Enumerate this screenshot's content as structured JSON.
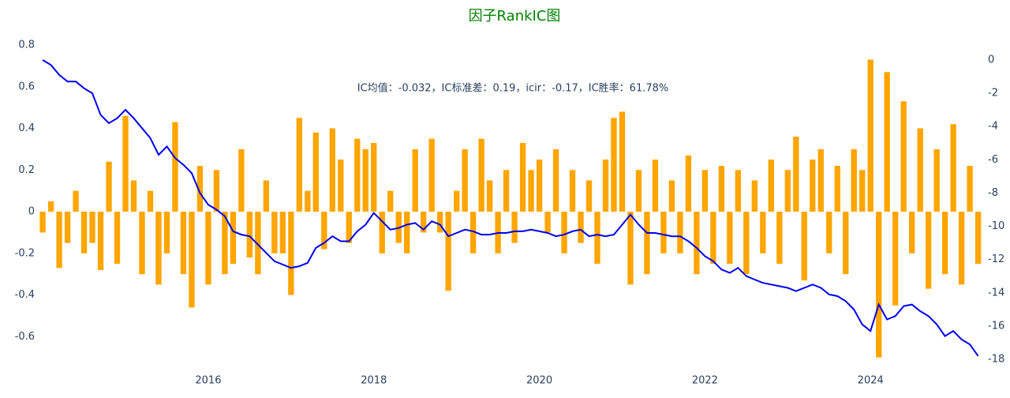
{
  "chart_data": {
    "type": "bar",
    "title": "因子RankIC图",
    "annotation": "IC均值：-0.032，IC标准差：0.19，icir：-0.17，IC胜率：61.78%",
    "x": [
      2014,
      2014.1,
      2014.2,
      2014.3,
      2014.4,
      2014.5,
      2014.6,
      2014.7,
      2014.8,
      2014.9,
      2015,
      2015.1,
      2015.2,
      2015.3,
      2015.4,
      2015.5,
      2015.6,
      2015.7,
      2015.8,
      2015.9,
      2016,
      2016.1,
      2016.2,
      2016.3,
      2016.4,
      2016.5,
      2016.6,
      2016.7,
      2016.8,
      2016.9,
      2017,
      2017.1,
      2017.2,
      2017.3,
      2017.4,
      2017.5,
      2017.6,
      2017.7,
      2017.8,
      2017.9,
      2018,
      2018.1,
      2018.2,
      2018.3,
      2018.4,
      2018.5,
      2018.6,
      2018.7,
      2018.8,
      2018.9,
      2019,
      2019.1,
      2019.2,
      2019.3,
      2019.4,
      2019.5,
      2019.6,
      2019.7,
      2019.8,
      2019.9,
      2020,
      2020.1,
      2020.2,
      2020.3,
      2020.4,
      2020.5,
      2020.6,
      2020.7,
      2020.8,
      2020.9,
      2021,
      2021.1,
      2021.2,
      2021.3,
      2021.4,
      2021.5,
      2021.6,
      2021.7,
      2021.8,
      2021.9,
      2022,
      2022.1,
      2022.2,
      2022.3,
      2022.4,
      2022.5,
      2022.6,
      2022.7,
      2022.8,
      2022.9,
      2023,
      2023.1,
      2023.2,
      2023.3,
      2023.4,
      2023.5,
      2023.6,
      2023.7,
      2023.8,
      2023.9,
      2024,
      2024.1,
      2024.2,
      2024.3,
      2024.4,
      2024.5,
      2024.6,
      2024.7,
      2024.8,
      2024.9,
      2025,
      2025.1,
      2025.2,
      2025.3
    ],
    "series": [
      {
        "type": "bar",
        "color": "#ffa500",
        "values": [
          -0.1,
          0.05,
          -0.27,
          -0.15,
          0.1,
          -0.2,
          -0.15,
          -0.28,
          0.24,
          -0.25,
          0.46,
          0.15,
          -0.3,
          0.1,
          -0.35,
          -0.2,
          0.43,
          -0.3,
          -0.46,
          0.22,
          -0.35,
          0.2,
          -0.3,
          -0.25,
          0.3,
          -0.22,
          -0.3,
          0.15,
          -0.2,
          -0.2,
          -0.4,
          0.45,
          0.1,
          0.38,
          -0.18,
          0.4,
          0.25,
          -0.15,
          0.35,
          0.3,
          0.33,
          -0.2,
          0.1,
          -0.15,
          -0.2,
          0.3,
          -0.1,
          0.35,
          -0.1,
          -0.38,
          0.1,
          0.3,
          -0.2,
          0.35,
          0.15,
          -0.2,
          0.2,
          -0.15,
          0.33,
          0.2,
          0.25,
          -0.1,
          0.3,
          -0.2,
          0.2,
          -0.15,
          0.15,
          -0.25,
          0.25,
          0.45,
          0.48,
          -0.35,
          0.2,
          -0.3,
          0.25,
          -0.2,
          0.15,
          -0.2,
          0.27,
          -0.3,
          0.2,
          -0.25,
          0.22,
          -0.25,
          0.2,
          -0.3,
          0.15,
          -0.2,
          0.25,
          -0.25,
          0.2,
          0.36,
          -0.33,
          0.25,
          0.3,
          -0.2,
          0.22,
          -0.3,
          0.3,
          0.2,
          0.73,
          -0.7,
          0.67,
          -0.45,
          0.53,
          -0.2,
          0.4,
          -0.37,
          0.3,
          -0.3,
          0.42,
          -0.35,
          0.22,
          -0.25
        ]
      },
      {
        "type": "line",
        "axis": "y2",
        "color": "#0000ee",
        "values": [
          0,
          -0.3,
          -0.9,
          -1.3,
          -1.3,
          -1.7,
          -2.0,
          -3.3,
          -3.8,
          -3.5,
          -3.0,
          -3.5,
          -4.1,
          -4.7,
          -5.7,
          -5.2,
          -5.9,
          -6.3,
          -6.8,
          -8.0,
          -8.7,
          -9.0,
          -9.4,
          -10.3,
          -10.5,
          -10.6,
          -11.1,
          -11.6,
          -12.1,
          -12.3,
          -12.5,
          -12.4,
          -12.2,
          -11.3,
          -11.0,
          -10.6,
          -10.9,
          -10.9,
          -10.3,
          -9.9,
          -9.2,
          -9.7,
          -10.2,
          -10.1,
          -9.9,
          -9.8,
          -10.2,
          -9.7,
          -9.9,
          -10.6,
          -10.4,
          -10.2,
          -10.3,
          -10.5,
          -10.5,
          -10.4,
          -10.4,
          -10.3,
          -10.3,
          -10.2,
          -10.3,
          -10.4,
          -10.6,
          -10.5,
          -10.3,
          -10.2,
          -10.6,
          -10.5,
          -10.6,
          -10.5,
          -9.9,
          -9.3,
          -9.9,
          -10.4,
          -10.4,
          -10.5,
          -10.6,
          -10.6,
          -10.9,
          -11.3,
          -11.8,
          -12.1,
          -12.6,
          -12.8,
          -12.5,
          -13.0,
          -13.2,
          -13.4,
          -13.5,
          -13.6,
          -13.7,
          -13.9,
          -13.7,
          -13.5,
          -13.7,
          -14.1,
          -14.2,
          -14.5,
          -15.0,
          -15.9,
          -16.3,
          -14.7,
          -15.6,
          -15.4,
          -14.8,
          -14.7,
          -15.1,
          -15.4,
          -15.9,
          -16.6,
          -16.3,
          -16.8,
          -17.1,
          -17.8
        ]
      }
    ],
    "xlim": [
      2013.98,
      2025.38
    ],
    "xticks": [
      2016,
      2018,
      2020,
      2022,
      2024
    ],
    "ylim": [
      -0.72,
      0.8
    ],
    "yticks": [
      0.8,
      0.6,
      0.4,
      0.2,
      0,
      -0.2,
      -0.4,
      -0.6
    ],
    "y2lim": [
      -18.14,
      0.9
    ],
    "y2ticks": [
      0,
      -2,
      -4,
      -6,
      -8,
      -10,
      -12,
      -14,
      -16,
      -18
    ]
  }
}
